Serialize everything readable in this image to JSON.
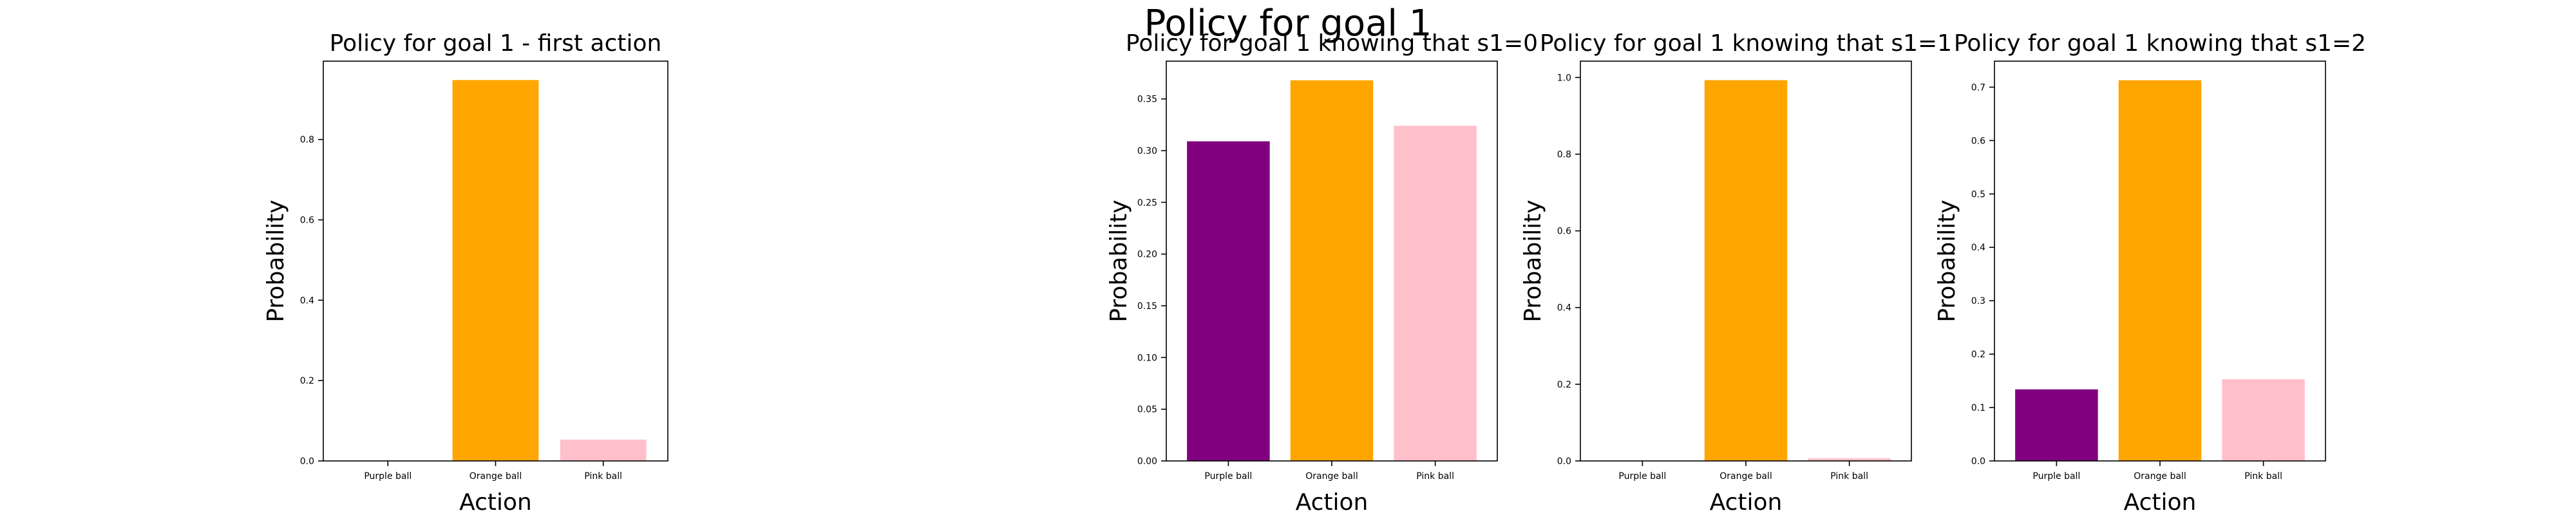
{
  "suptitle": "Policy for goal 1",
  "chart_data": [
    {
      "type": "bar",
      "title": "Policy for goal 1 - first action",
      "xlabel": "Action",
      "ylabel": "Probability",
      "categories": [
        "Purple ball",
        "Orange ball",
        "Pink ball"
      ],
      "values": [
        0.0,
        0.948,
        0.053
      ],
      "colors": [
        "#800080",
        "#ffa500",
        "#ffc0cb"
      ],
      "yticks": [
        "0.0",
        "0.2",
        "0.4",
        "0.6",
        "0.8"
      ],
      "ylim": [
        0,
        0.995
      ],
      "grid": false
    },
    {
      "type": "bar",
      "title": "Policy for goal 1 knowing that s1=0",
      "xlabel": "Action",
      "ylabel": "Probability",
      "categories": [
        "Purple ball",
        "Orange ball",
        "Pink ball"
      ],
      "values": [
        0.309,
        0.368,
        0.324
      ],
      "colors": [
        "#800080",
        "#ffa500",
        "#ffc0cb"
      ],
      "yticks": [
        "0.00",
        "0.05",
        "0.10",
        "0.15",
        "0.20",
        "0.25",
        "0.30",
        "0.35"
      ],
      "ylim": [
        0,
        0.3865
      ],
      "grid": false
    },
    {
      "type": "bar",
      "title": "Policy for goal 1 knowing that s1=1",
      "xlabel": "Action",
      "ylabel": "Probability",
      "categories": [
        "Purple ball",
        "Orange ball",
        "Pink ball"
      ],
      "values": [
        0.0,
        0.993,
        0.007
      ],
      "colors": [
        "#800080",
        "#ffa500",
        "#ffc0cb"
      ],
      "yticks": [
        "0.0",
        "0.2",
        "0.4",
        "0.6",
        "0.8",
        "1.0"
      ],
      "ylim": [
        0,
        1.0426
      ],
      "grid": false
    },
    {
      "type": "bar",
      "title": "Policy for goal 1 knowing that s1=2",
      "xlabel": "Action",
      "ylabel": "Probability",
      "categories": [
        "Purple ball",
        "Orange ball",
        "Pink ball"
      ],
      "values": [
        0.134,
        0.713,
        0.153
      ],
      "colors": [
        "#800080",
        "#ffa500",
        "#ffc0cb"
      ],
      "yticks": [
        "0.0",
        "0.1",
        "0.2",
        "0.3",
        "0.4",
        "0.5",
        "0.6",
        "0.7"
      ],
      "ylim": [
        0,
        0.7487
      ],
      "grid": false
    }
  ]
}
